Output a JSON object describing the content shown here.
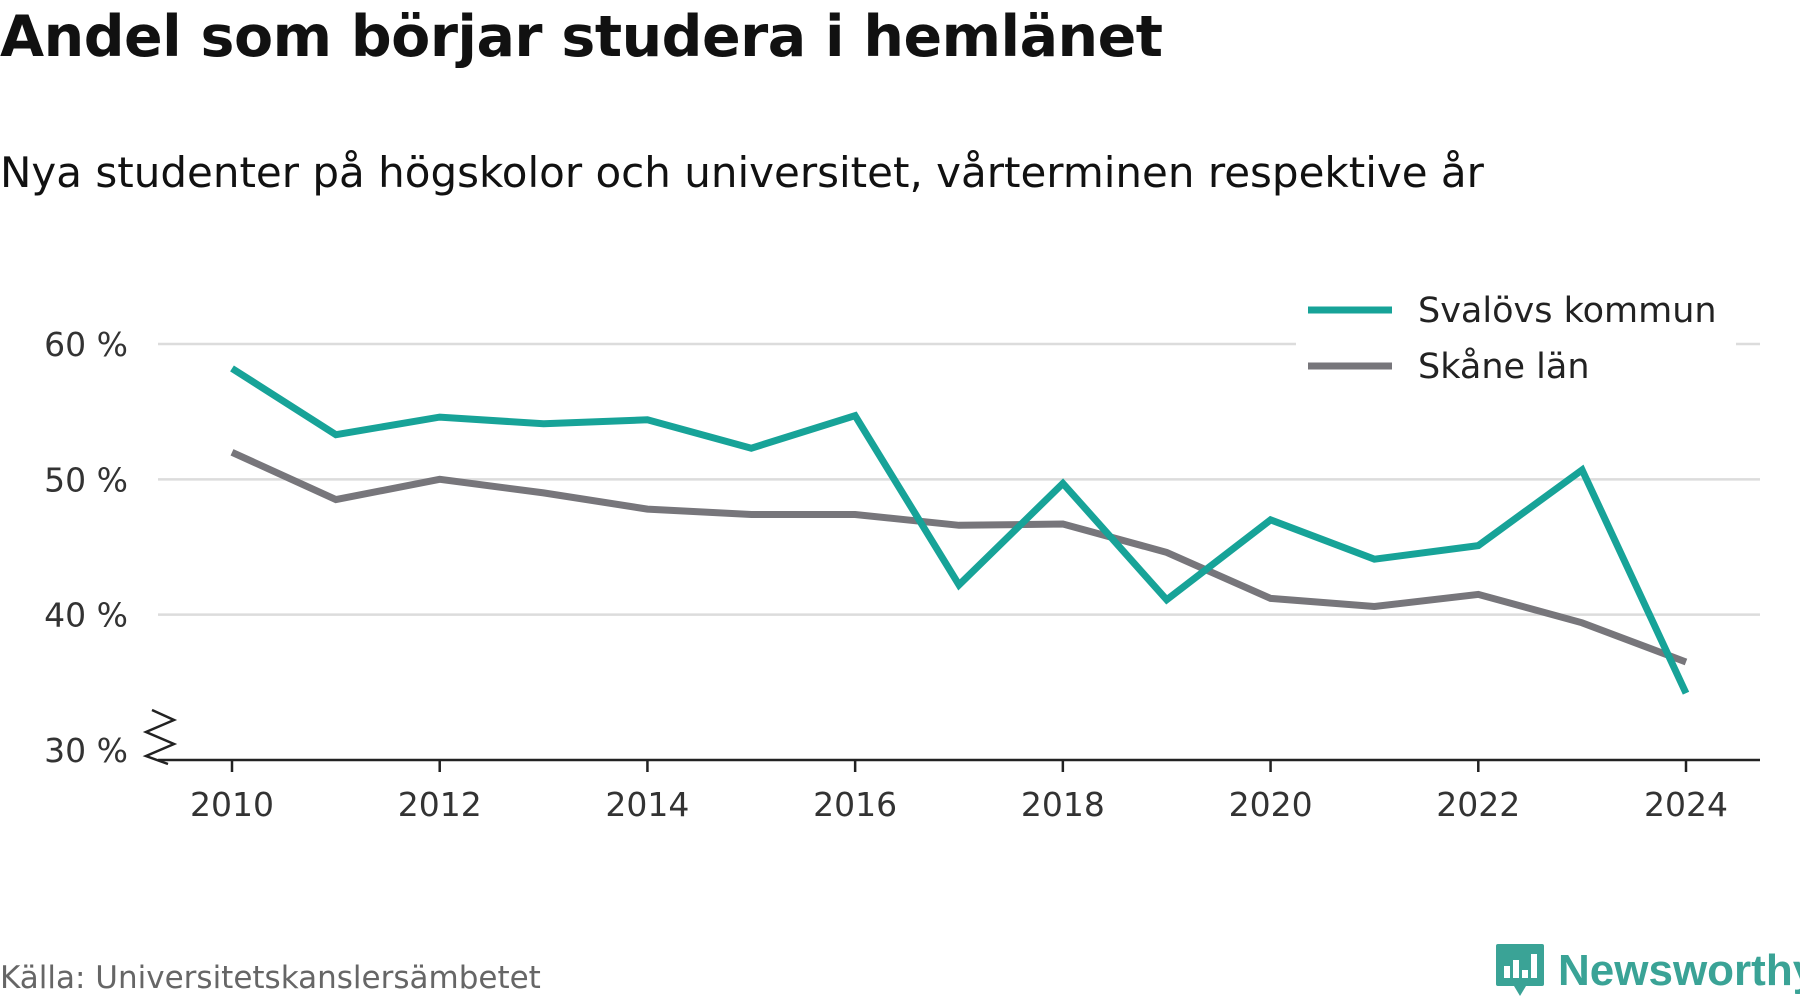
{
  "title": "Andel som börjar studera i hemlänet",
  "subtitle": "Nya studenter på högskolor och universitet, vårterminen respektive år",
  "source": "Källa: Universitetskanslersämbetet",
  "logo": {
    "text": "Newsworthy",
    "icon": "bar-chart-speech-bubble-icon",
    "color": "#3aa396"
  },
  "chart_data": {
    "type": "line",
    "x": [
      2010,
      2011,
      2012,
      2013,
      2014,
      2015,
      2016,
      2017,
      2018,
      2019,
      2020,
      2021,
      2022,
      2023,
      2024
    ],
    "series": [
      {
        "name": "Svalövs kommun",
        "color": "#17a398",
        "values": [
          58.2,
          53.3,
          54.6,
          54.1,
          54.4,
          52.3,
          54.7,
          42.2,
          49.7,
          41.1,
          47.0,
          44.1,
          45.1,
          50.7,
          34.2
        ]
      },
      {
        "name": "Skåne län",
        "color": "#77767b",
        "values": [
          52.0,
          48.5,
          50.0,
          49.0,
          47.8,
          47.4,
          47.4,
          46.6,
          46.7,
          44.6,
          41.2,
          40.6,
          41.5,
          39.4,
          36.5
        ]
      }
    ],
    "yticks": [
      30,
      40,
      50,
      60
    ],
    "ytick_labels": [
      "30 %",
      "40 %",
      "50 %",
      "60 %"
    ],
    "xticks": [
      2010,
      2012,
      2014,
      2016,
      2018,
      2020,
      2022,
      2024
    ],
    "xtick_labels": [
      "2010",
      "2012",
      "2014",
      "2016",
      "2018",
      "2020",
      "2022",
      "2024"
    ],
    "ylim": [
      30,
      60
    ],
    "xlim": [
      2010,
      2024
    ],
    "y_axis_break": true,
    "grid": true,
    "legend": "top-right"
  }
}
